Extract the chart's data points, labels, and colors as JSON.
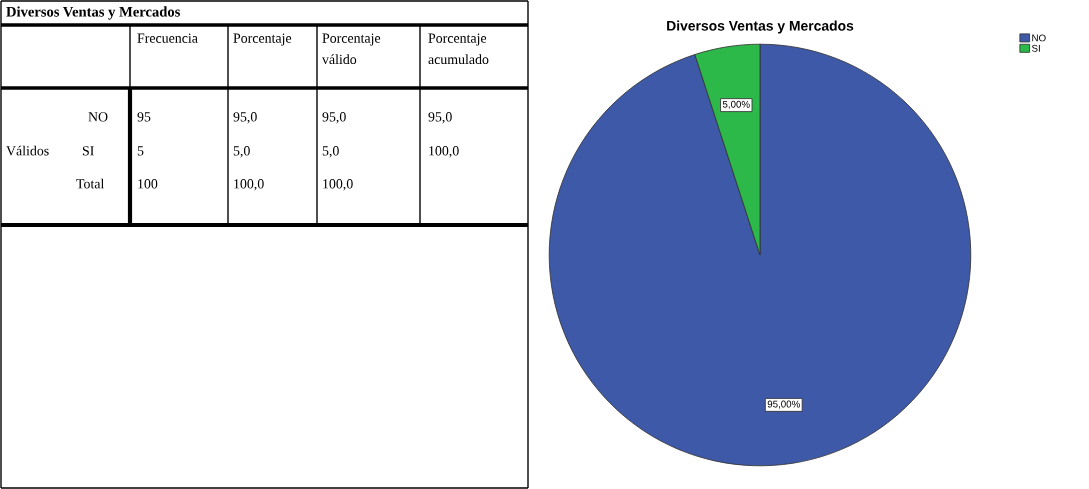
{
  "chart_data": [
    {
      "type": "other",
      "title": "Diversos Ventas y Mercados",
      "annotations": [
        "Frecuencia",
        "Porcentaje",
        "Porcentaje\nválido",
        "Porcentaje\nacumulado",
        "NO",
        "95",
        "95,0",
        "95,0",
        "95,0",
        "Válidos",
        "SI",
        "5",
        "5,0",
        "5,0",
        "100,0",
        "Total",
        "100",
        "100,0",
        "100,0"
      ]
    },
    {
      "type": "pie",
      "title": "Diversos Ventas y Mercados",
      "categories": [
        "NO",
        "SI"
      ],
      "values": [
        95,
        5
      ],
      "colors": [
        "#3f59a9",
        "#2db84a"
      ],
      "value_labels": [
        "95,00%",
        "5,00%"
      ],
      "legend": "top right"
    }
  ]
}
